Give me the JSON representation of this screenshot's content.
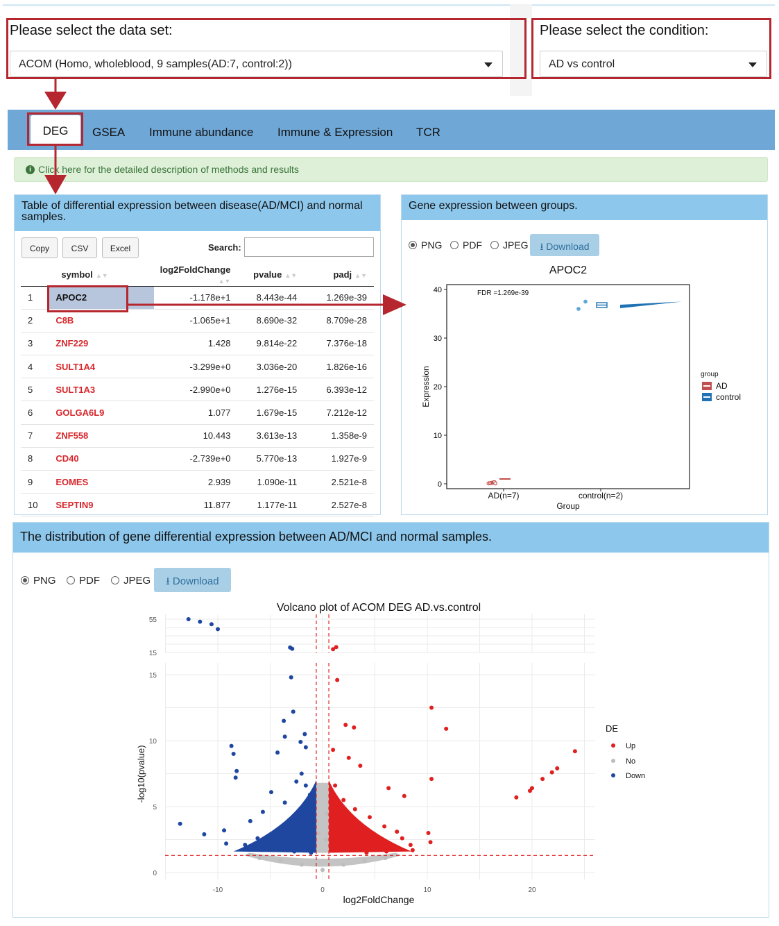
{
  "dataset": {
    "label": "Please select the data set:",
    "value": "ACOM (Homo, wholeblood, 9 samples(AD:7, control:2))"
  },
  "condition": {
    "label": "Please select the condition:",
    "value": "AD vs control"
  },
  "tabs": [
    {
      "label": "DEG",
      "active": true
    },
    {
      "label": "GSEA"
    },
    {
      "label": "Immune abundance"
    },
    {
      "label": "Immune & Expression"
    },
    {
      "label": "TCR"
    }
  ],
  "info_bar": "Click here for the detailed description of methods and results",
  "deg_table": {
    "title": "Table of differential expression between disease(AD/MCI) and normal samples.",
    "buttons": {
      "copy": "Copy",
      "csv": "CSV",
      "excel": "Excel"
    },
    "search_label": "Search:",
    "columns": [
      "symbol",
      "log2FoldChange",
      "pvalue",
      "padj"
    ],
    "rows": [
      {
        "idx": "1",
        "symbol": "APOC2",
        "lfc": "-1.178e+1",
        "pvalue": "8.443e-44",
        "padj": "1.269e-39"
      },
      {
        "idx": "2",
        "symbol": "C8B",
        "lfc": "-1.065e+1",
        "pvalue": "8.690e-32",
        "padj": "8.709e-28"
      },
      {
        "idx": "3",
        "symbol": "ZNF229",
        "lfc": "1.428",
        "pvalue": "9.814e-22",
        "padj": "7.376e-18"
      },
      {
        "idx": "4",
        "symbol": "SULT1A4",
        "lfc": "-3.299e+0",
        "pvalue": "3.036e-20",
        "padj": "1.826e-16"
      },
      {
        "idx": "5",
        "symbol": "SULT1A3",
        "lfc": "-2.990e+0",
        "pvalue": "1.276e-15",
        "padj": "6.393e-12"
      },
      {
        "idx": "6",
        "symbol": "GOLGA6L9",
        "lfc": "1.077",
        "pvalue": "1.679e-15",
        "padj": "7.212e-12"
      },
      {
        "idx": "7",
        "symbol": "ZNF558",
        "lfc": "10.443",
        "pvalue": "3.613e-13",
        "padj": "1.358e-9"
      },
      {
        "idx": "8",
        "symbol": "CD40",
        "lfc": "-2.739e+0",
        "pvalue": "5.770e-13",
        "padj": "1.927e-9"
      },
      {
        "idx": "9",
        "symbol": "EOMES",
        "lfc": "2.939",
        "pvalue": "1.090e-11",
        "padj": "2.521e-8"
      },
      {
        "idx": "10",
        "symbol": "SEPTIN9",
        "lfc": "11.877",
        "pvalue": "1.177e-11",
        "padj": "2.527e-8"
      }
    ]
  },
  "expr_panel": {
    "title": "Gene expression between groups.",
    "formats": [
      "PNG",
      "PDF",
      "JPEG"
    ],
    "download": "Download",
    "plot_title": "APOC2",
    "fdr": "FDR =1.269e-39",
    "ylabel": "Expression",
    "xlabel": "Group",
    "groups": [
      "AD(n=7)",
      "control(n=2)"
    ],
    "legend_title": "group",
    "legend": [
      "AD",
      "control"
    ],
    "yticks": [
      "0",
      "10",
      "20",
      "30",
      "40"
    ]
  },
  "volcano_panel": {
    "title": "The distribution of gene differential expression between AD/MCI and normal samples.",
    "formats": [
      "PNG",
      "PDF",
      "JPEG"
    ],
    "download": "Download",
    "plot_title": "Volcano plot of ACOM DEG AD.vs.control",
    "xlabel": "log2FoldChange",
    "ylabel": "-log10(pvalue)",
    "legend_title": "DE",
    "legend": [
      "Up",
      "No",
      "Down"
    ],
    "xticks": [
      "-10",
      "0",
      "10",
      "20"
    ],
    "yticks_lower": [
      "0",
      "5",
      "10",
      "15"
    ],
    "yticks_upper": [
      "15",
      "55"
    ]
  },
  "colors": {
    "up": "#e02020",
    "no": "#bdbdbd",
    "down": "#1f47a0",
    "header": "#8ec7ec",
    "tabs": "#6fa7d6",
    "annot": "#b5262e"
  },
  "chart_data": [
    {
      "type": "scatter",
      "title": "APOC2",
      "xlabel": "Group",
      "ylabel": "Expression",
      "categories": [
        "AD(n=7)",
        "control(n=2)"
      ],
      "ylim": [
        -1,
        41
      ],
      "series": [
        {
          "name": "AD",
          "values": [
            0.1,
            0.0,
            0.2,
            0.1,
            0.3,
            0.2,
            0.1
          ]
        },
        {
          "name": "control",
          "values": [
            37.5,
            36.0
          ]
        }
      ]
    },
    {
      "type": "scatter",
      "title": "Volcano plot of ACOM DEG AD.vs.control",
      "xlabel": "log2FoldChange",
      "ylabel": "-log10(pvalue)",
      "xlim": [
        -15,
        26
      ],
      "series": [
        {
          "name": "Down",
          "points": [
            [
              -12.8,
              55
            ],
            [
              -11.7,
              52
            ],
            [
              -10.6,
              49
            ],
            [
              -10.0,
              43
            ],
            [
              -3.1,
              21
            ],
            [
              -2.9,
              19.5
            ],
            [
              -3.0,
              14.8
            ],
            [
              -2.8,
              12.2
            ],
            [
              -3.7,
              11.5
            ],
            [
              -3.6,
              10.3
            ],
            [
              -1.7,
              10.5
            ],
            [
              -2.1,
              9.9
            ],
            [
              -1.6,
              9.5
            ],
            [
              -4.3,
              9.1
            ],
            [
              -8.7,
              9.6
            ],
            [
              -8.5,
              9.0
            ],
            [
              -8.2,
              7.7
            ],
            [
              -8.3,
              7.2
            ],
            [
              -13.6,
              3.7
            ],
            [
              -11.3,
              2.9
            ],
            [
              -9.4,
              3.2
            ],
            [
              -9.2,
              2.2
            ],
            [
              -6.9,
              3.9
            ],
            [
              -5.7,
              4.6
            ],
            [
              -4.9,
              6.1
            ],
            [
              -2.5,
              6.9
            ],
            [
              -2.0,
              7.5
            ],
            [
              -1.6,
              6.6
            ],
            [
              -1.2,
              5.9
            ],
            [
              -1.0,
              5.2
            ],
            [
              -0.8,
              4.4
            ],
            [
              -3.6,
              5.3
            ],
            [
              -2.2,
              4.5
            ],
            [
              -1.4,
              3.8
            ],
            [
              -0.9,
              3.1
            ],
            [
              -6.2,
              2.6
            ],
            [
              -4.4,
              3.0
            ],
            [
              -3.0,
              2.4
            ],
            [
              -1.9,
              2.0
            ],
            [
              -7.4,
              2.1
            ],
            [
              -5.1,
              1.8
            ],
            [
              -2.7,
              1.6
            ],
            [
              -1.1,
              1.5
            ]
          ]
        },
        {
          "name": "Up",
          "points": [
            [
              1.3,
              21.5
            ],
            [
              1.0,
              19
            ],
            [
              1.4,
              14.6
            ],
            [
              10.4,
              12.5
            ],
            [
              11.8,
              10.9
            ],
            [
              2.2,
              11.2
            ],
            [
              3.0,
              11.0
            ],
            [
              1.0,
              9.3
            ],
            [
              2.5,
              8.7
            ],
            [
              3.6,
              8.1
            ],
            [
              10.4,
              7.1
            ],
            [
              6.3,
              6.4
            ],
            [
              7.8,
              5.8
            ],
            [
              18.5,
              5.7
            ],
            [
              19.8,
              6.2
            ],
            [
              20.0,
              6.4
            ],
            [
              21.0,
              7.1
            ],
            [
              21.9,
              7.6
            ],
            [
              22.4,
              7.9
            ],
            [
              24.1,
              9.2
            ],
            [
              10.1,
              3.0
            ],
            [
              10.3,
              2.3
            ],
            [
              1.2,
              6.6
            ],
            [
              2.0,
              5.5
            ],
            [
              3.1,
              4.8
            ],
            [
              4.5,
              4.2
            ],
            [
              5.9,
              3.5
            ],
            [
              7.1,
              3.1
            ],
            [
              7.6,
              2.6
            ],
            [
              8.4,
              2.1
            ],
            [
              8.6,
              1.7
            ],
            [
              1.5,
              3.6
            ],
            [
              2.6,
              2.9
            ],
            [
              3.8,
              2.4
            ],
            [
              5.0,
              2.0
            ],
            [
              6.1,
              1.6
            ],
            [
              1.1,
              2.2
            ],
            [
              1.9,
              1.8
            ],
            [
              4.2,
              1.5
            ]
          ]
        },
        {
          "name": "No",
          "points": [
            [
              -6,
              1.1
            ],
            [
              -4,
              0.9
            ],
            [
              -2,
              0.6
            ],
            [
              0,
              0.2
            ],
            [
              2,
              0.6
            ],
            [
              4,
              0.9
            ],
            [
              6,
              1.1
            ],
            [
              -0.4,
              3.0
            ],
            [
              0.4,
              4.5
            ],
            [
              0.3,
              2.5
            ]
          ]
        }
      ]
    }
  ]
}
